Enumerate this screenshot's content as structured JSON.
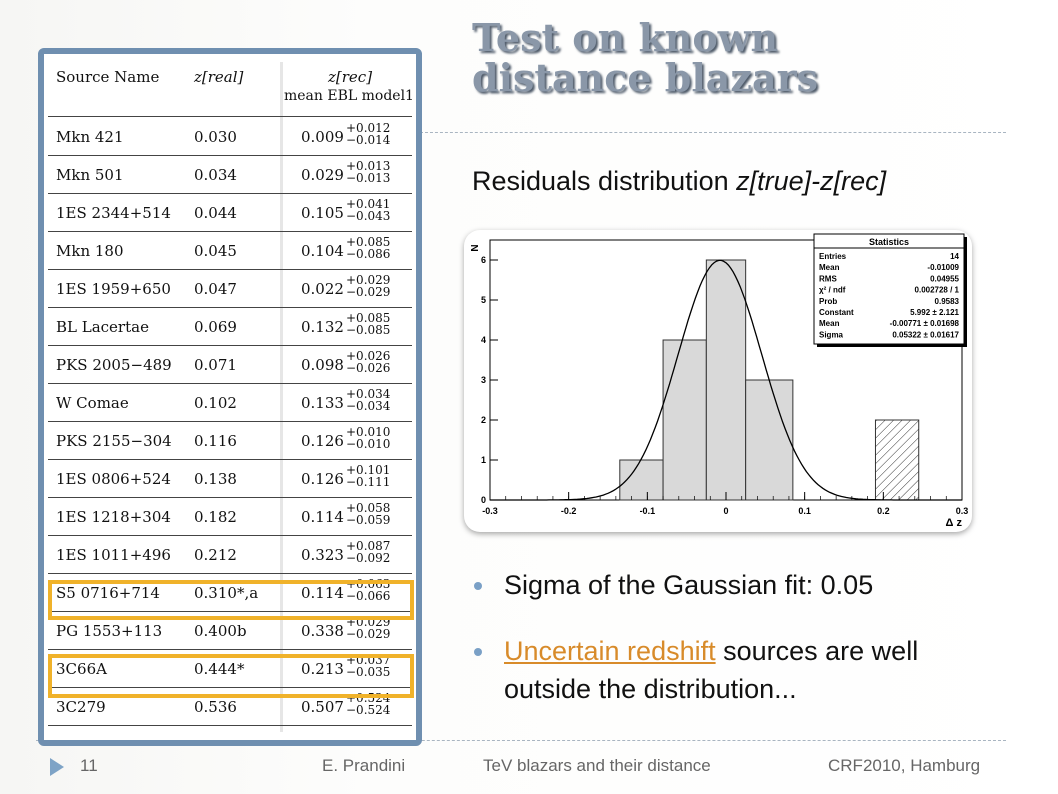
{
  "slide": {
    "title_line1": "Test on known",
    "title_line2": "distance blazars",
    "subtitle_plain": "Residuals distribution ",
    "subtitle_italic": "z[true]-z[rec]"
  },
  "table": {
    "headers": {
      "source": "Source Name",
      "zreal": "z[real]",
      "zrec": "z[rec]",
      "zrec_sub": "mean EBL model1"
    },
    "rows": [
      {
        "name": "Mkn 421",
        "zreal": "0.030",
        "zrec": "0.009",
        "up": "+0.012",
        "lo": "−0.014"
      },
      {
        "name": "Mkn 501",
        "zreal": "0.034",
        "zrec": "0.029",
        "up": "+0.013",
        "lo": "−0.013"
      },
      {
        "name": "1ES 2344+514",
        "zreal": "0.044",
        "zrec": "0.105",
        "up": "+0.041",
        "lo": "−0.043"
      },
      {
        "name": "Mkn 180",
        "zreal": "0.045",
        "zrec": "0.104",
        "up": "+0.085",
        "lo": "−0.086"
      },
      {
        "name": "1ES 1959+650",
        "zreal": "0.047",
        "zrec": "0.022",
        "up": "+0.029",
        "lo": "−0.029"
      },
      {
        "name": "BL Lacertae",
        "zreal": "0.069",
        "zrec": "0.132",
        "up": "+0.085",
        "lo": "−0.085"
      },
      {
        "name": "PKS 2005−489",
        "zreal": "0.071",
        "zrec": "0.098",
        "up": "+0.026",
        "lo": "−0.026"
      },
      {
        "name": "W Comae",
        "zreal": "0.102",
        "zrec": "0.133",
        "up": "+0.034",
        "lo": "−0.034"
      },
      {
        "name": "PKS 2155−304",
        "zreal": "0.116",
        "zrec": "0.126",
        "up": "+0.010",
        "lo": "−0.010"
      },
      {
        "name": "1ES 0806+524",
        "zreal": "0.138",
        "zrec": "0.126",
        "up": "+0.101",
        "lo": "−0.111"
      },
      {
        "name": "1ES 1218+304",
        "zreal": "0.182",
        "zrec": "0.114",
        "up": "+0.058",
        "lo": "−0.059"
      },
      {
        "name": "1ES 1011+496",
        "zreal": "0.212",
        "zrec": "0.323",
        "up": "+0.087",
        "lo": "−0.092"
      },
      {
        "name": "S5 0716+714",
        "zreal": "0.310*,a",
        "zrec": "0.114",
        "up": "+0.063",
        "lo": "−0.066",
        "highlight": true
      },
      {
        "name": "PG 1553+113",
        "zreal": "0.400b",
        "zrec": "0.338",
        "up": "+0.029",
        "lo": "−0.029"
      },
      {
        "name": "3C66A",
        "zreal": "0.444*",
        "zrec": "0.213",
        "up": "+0.037",
        "lo": "−0.035",
        "highlight": true
      },
      {
        "name": "3C279",
        "zreal": "0.536",
        "zrec": "0.507",
        "up": "+0.524",
        "lo": "−0.524"
      }
    ]
  },
  "chart_data": {
    "type": "bar",
    "xlabel": "Δ z",
    "ylabel": "N",
    "xlim": [
      -0.3,
      0.3
    ],
    "ylim": [
      0,
      6.5
    ],
    "xticks": [
      "-0.3",
      "-0.2",
      "-0.1",
      "0",
      "0.1",
      "0.2",
      "0.3"
    ],
    "yticks": [
      "0",
      "1",
      "2",
      "3",
      "4",
      "5",
      "6"
    ],
    "bins": [
      {
        "x0": -0.135,
        "x1": -0.08,
        "n": 1
      },
      {
        "x0": -0.08,
        "x1": -0.025,
        "n": 4
      },
      {
        "x0": -0.025,
        "x1": 0.025,
        "n": 6
      },
      {
        "x0": 0.025,
        "x1": 0.085,
        "n": 3
      },
      {
        "x0": 0.19,
        "x1": 0.245,
        "n": 2,
        "hatched": true
      }
    ],
    "fit": {
      "constant": 5.992,
      "mean": -0.00771,
      "sigma": 0.05322
    },
    "stats": {
      "title": "Statistics",
      "rows": [
        {
          "k": "Entries",
          "v": "14"
        },
        {
          "k": "Mean",
          "v": "-0.01009"
        },
        {
          "k": "RMS",
          "v": "0.04955"
        },
        {
          "k": "χ² / ndf",
          "v": "0.002728 / 1"
        },
        {
          "k": "Prob",
          "v": "0.9583"
        },
        {
          "k": "Constant",
          "v": "5.992 ± 2.121"
        },
        {
          "k": "Mean",
          "v": "-0.00771 ± 0.01698"
        },
        {
          "k": "Sigma",
          "v": "0.05322 ± 0.01617"
        }
      ]
    }
  },
  "bullets": {
    "b1": "Sigma of the Gaussian fit: 0.05",
    "b2_link": "Uncertain redshift",
    "b2_rest": " sources are well",
    "b2_line2": "outside the distribution..."
  },
  "footer": {
    "page": "11",
    "author": "E. Prandini",
    "talk": "TeV blazars and their distance",
    "event": "CRF2010, Hamburg"
  }
}
